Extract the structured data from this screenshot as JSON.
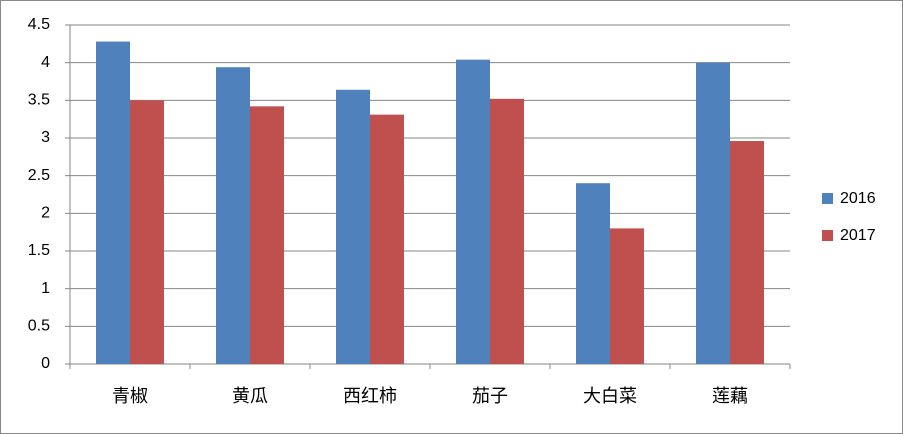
{
  "chart_data": {
    "type": "bar",
    "categories": [
      "青椒",
      "黄瓜",
      "西红柿",
      "茄子",
      "大白菜",
      "莲藕"
    ],
    "series": [
      {
        "name": "2016",
        "color": "#4f81bd",
        "values": [
          4.28,
          3.94,
          3.64,
          4.04,
          2.4,
          4.0
        ]
      },
      {
        "name": "2017",
        "color": "#c0504d",
        "values": [
          3.5,
          3.42,
          3.31,
          3.52,
          1.8,
          2.96
        ]
      }
    ],
    "ylim": [
      0,
      4.5
    ],
    "yticks": [
      0,
      0.5,
      1,
      1.5,
      2,
      2.5,
      3,
      3.5,
      4,
      4.5
    ],
    "grid": true,
    "legend": "right"
  }
}
